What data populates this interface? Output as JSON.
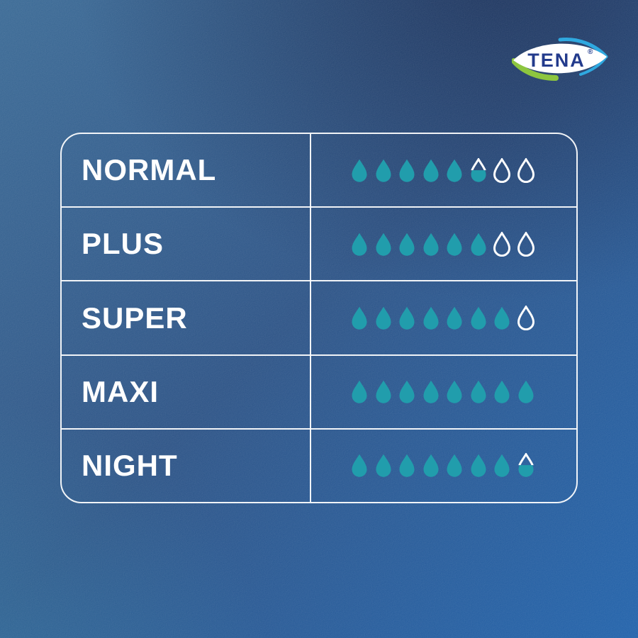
{
  "page": {
    "background": {
      "top_left": "#2B5C8E",
      "top_center": "#1C4382",
      "top_right": "#152F66",
      "bottom_left": "#1D6095",
      "bottom_right": "#1459A6",
      "center": "#1D4A84"
    }
  },
  "logo": {
    "brand": "TENA",
    "registered_mark": "®",
    "colors": {
      "wordmark_blue": "#233B8C",
      "leaf_green": "#8DC63F",
      "swoosh_blue": "#2FA9E0",
      "lens_white": "#FFFFFF"
    }
  },
  "chart_data": {
    "type": "table",
    "title": "",
    "description_of_encoding": "pictograph: each row shows absorbency out of 8 drops (filled / half-filled / outline)",
    "max_drops_per_row": 8,
    "drop_color": "#219DAC",
    "empty_drop_stroke": "#FFFFFF",
    "table_line_color": "#FFFFFF",
    "label_color": "#FFFFFF",
    "rows": [
      {
        "label": "NORMAL",
        "full": 5,
        "half": 1,
        "empty": 2,
        "drops_value": 5.5
      },
      {
        "label": "PLUS",
        "full": 6,
        "half": 0,
        "empty": 2,
        "drops_value": 6
      },
      {
        "label": "SUPER",
        "full": 7,
        "half": 0,
        "empty": 1,
        "drops_value": 7
      },
      {
        "label": "MAXI",
        "full": 8,
        "half": 0,
        "empty": 0,
        "drops_value": 8
      },
      {
        "label": "NIGHT",
        "full": 7,
        "half": 1,
        "empty": 0,
        "drops_value": 7.5
      }
    ]
  }
}
